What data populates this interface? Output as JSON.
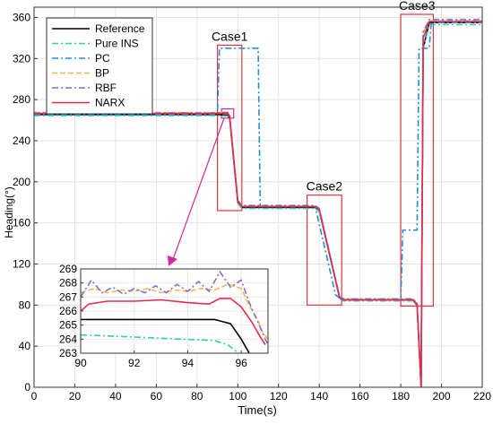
{
  "chart_data": {
    "type": "line",
    "xlabel": "Time(s)",
    "ylabel": "Heading(°)",
    "xlim": [
      0,
      220
    ],
    "ylim": [
      0,
      370
    ],
    "xticks": [
      0,
      20,
      40,
      60,
      80,
      100,
      120,
      140,
      160,
      180,
      200,
      220
    ],
    "yticks": [
      0,
      40,
      80,
      120,
      160,
      200,
      240,
      280,
      320,
      360
    ],
    "grid": true,
    "legend": {
      "placement": "top-left",
      "entries": [
        "Reference",
        "Pure INS",
        "PC",
        "BP",
        "RBF",
        "NARX"
      ]
    },
    "series": [
      {
        "name": "Reference",
        "color": "#000000",
        "dash": "solid",
        "x": [
          0,
          90,
          95,
          96,
          100,
          102,
          130,
          138,
          140,
          150,
          152,
          186,
          188,
          190,
          191,
          194,
          220
        ],
        "y": [
          265.5,
          265.5,
          265,
          262,
          180,
          175,
          175,
          175,
          172,
          87,
          85,
          85,
          80,
          0,
          330,
          355,
          355
        ]
      },
      {
        "name": "Pure INS",
        "color": "#2ecfb4",
        "dash": "dashdot",
        "x": [
          0,
          90,
          95,
          96,
          100,
          102,
          130,
          138,
          140,
          150,
          152,
          186,
          188,
          190,
          191,
          194,
          220
        ],
        "y": [
          264.5,
          264.5,
          264,
          261,
          179,
          174,
          174,
          174,
          171,
          86,
          84,
          84,
          79,
          0,
          329,
          353,
          353
        ]
      },
      {
        "name": "PC",
        "color": "#1f8fe0",
        "dash": "dashdot",
        "x": [
          0,
          90,
          91,
          110,
          111,
          135,
          138,
          148,
          151,
          180,
          181,
          188,
          189,
          194,
          195,
          220
        ],
        "y": [
          265.5,
          265.5,
          330,
          330,
          176,
          176,
          176,
          90,
          85,
          85,
          153,
          153,
          330,
          330,
          355,
          355
        ]
      },
      {
        "name": "BP",
        "color": "#f2b84b",
        "dash": "dashed",
        "x": [
          0,
          90,
          95,
          96,
          100,
          102,
          130,
          138,
          140,
          150,
          152,
          186,
          188,
          190,
          191,
          194,
          220
        ],
        "y": [
          267.5,
          267.5,
          267.8,
          264,
          181,
          176,
          176,
          176,
          173,
          88,
          86,
          86,
          81,
          0,
          345,
          357,
          357
        ]
      },
      {
        "name": "RBF",
        "color": "#7b6fd0",
        "dash": "dashdot",
        "x": [
          0,
          90,
          95,
          96,
          100,
          102,
          130,
          138,
          140,
          150,
          152,
          186,
          188,
          190,
          191,
          194,
          220
        ],
        "y": [
          267,
          267,
          267.5,
          265,
          182,
          177,
          177,
          177,
          174,
          88,
          86,
          86,
          82,
          0,
          346,
          358,
          358
        ]
      },
      {
        "name": "NARX",
        "color": "#e8284f",
        "dash": "solid",
        "x": [
          0,
          90,
          95,
          96,
          100,
          102,
          130,
          138,
          140,
          150,
          152,
          186,
          188,
          190,
          191,
          194,
          220
        ],
        "y": [
          266.5,
          266.5,
          267,
          264,
          181,
          176,
          176,
          176,
          173,
          87,
          85,
          85,
          81,
          0,
          340,
          356,
          356
        ]
      }
    ],
    "annotations": {
      "cases": [
        {
          "label": "Case1",
          "x": [
            90,
            102
          ],
          "y": [
            172,
            333
          ]
        },
        {
          "label": "Case2",
          "x": [
            134,
            151
          ],
          "y": [
            80,
            187
          ]
        },
        {
          "label": "Case3",
          "x": [
            180,
            196
          ],
          "y": [
            79,
            363
          ]
        }
      ],
      "zoom_source": {
        "x": [
          92,
          98
        ],
        "y": [
          262,
          271
        ]
      }
    },
    "inset": {
      "xlim": [
        90,
        97
      ],
      "ylim": [
        263,
        269
      ],
      "xticks": [
        90,
        92,
        94,
        96
      ],
      "yticks": [
        263,
        264,
        265,
        266,
        267,
        268,
        269
      ],
      "series": [
        {
          "name": "Reference",
          "x": [
            90,
            95.0,
            95.6,
            96.0,
            96.3
          ],
          "y": [
            265.4,
            265.4,
            265.1,
            264.0,
            263.0
          ]
        },
        {
          "name": "Pure INS",
          "x": [
            90,
            92.0,
            95.0,
            95.5,
            95.9
          ],
          "y": [
            264.3,
            264.15,
            263.9,
            263.6,
            263.0
          ]
        },
        {
          "name": "BP",
          "x": [
            90,
            90.5,
            91.0,
            91.5,
            92.0,
            92.5,
            93.0,
            93.5,
            94.0,
            94.5,
            95.0,
            95.5,
            96.0,
            96.3,
            96.6,
            96.8,
            97.0
          ],
          "y": [
            267.3,
            267.6,
            267.3,
            267.5,
            267.4,
            267.6,
            267.3,
            267.5,
            267.4,
            267.6,
            267.5,
            267.9,
            267.6,
            266.4,
            265.4,
            264.5,
            264.0
          ]
        },
        {
          "name": "RBF",
          "x": [
            90,
            90.4,
            90.8,
            91.2,
            91.6,
            92.0,
            92.4,
            92.8,
            93.2,
            93.6,
            94.0,
            94.4,
            94.8,
            95.2,
            95.6,
            96.0,
            96.3,
            96.6,
            96.9,
            97.0
          ],
          "y": [
            267.0,
            268.2,
            267.3,
            267.7,
            267.2,
            267.6,
            267.3,
            267.8,
            267.3,
            267.9,
            267.4,
            268.1,
            267.4,
            268.8,
            267.7,
            268.2,
            266.6,
            265.3,
            264.0,
            263.6
          ]
        },
        {
          "name": "NARX",
          "x": [
            90,
            90.3,
            91.0,
            92.0,
            93.0,
            94.0,
            94.8,
            95.2,
            95.6,
            96.0,
            96.4,
            96.7,
            96.9
          ],
          "y": [
            266.0,
            266.5,
            266.7,
            266.7,
            266.8,
            266.6,
            266.5,
            266.9,
            266.9,
            266.3,
            265.2,
            264.2,
            263.6
          ]
        }
      ]
    }
  }
}
